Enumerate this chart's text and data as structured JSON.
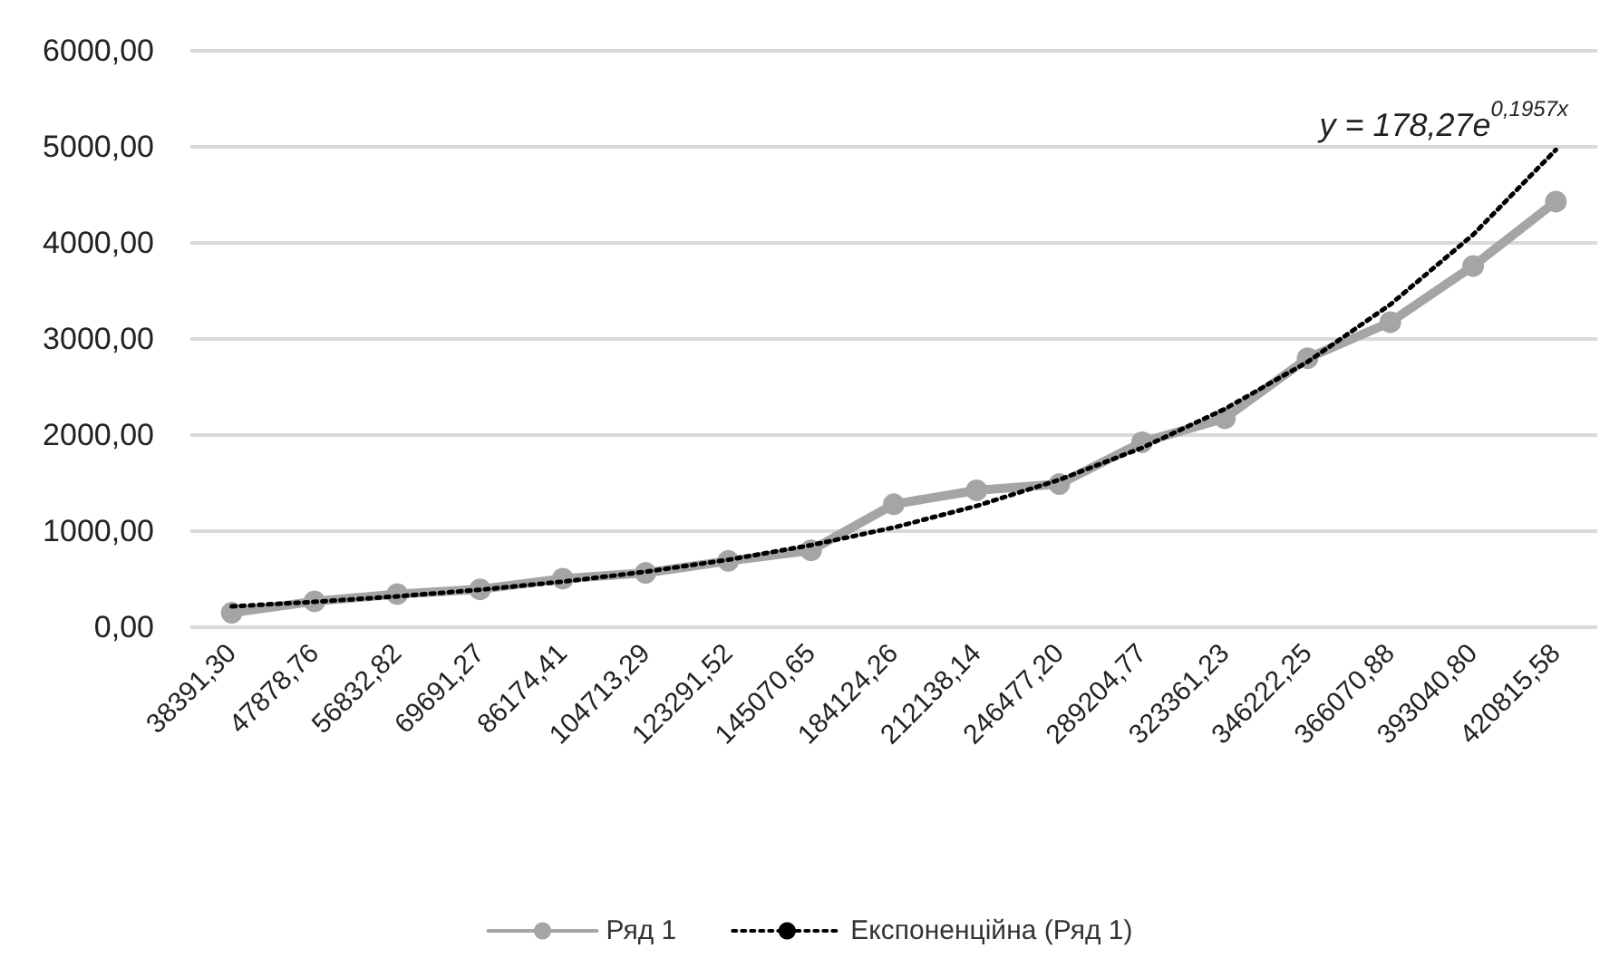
{
  "chart_data": {
    "type": "line",
    "categories": [
      "38391,30",
      "47878,76",
      "56832,82",
      "69691,27",
      "86174,41",
      "104713,29",
      "123291,52",
      "145070,65",
      "184124,26",
      "212138,14",
      "246477,20",
      "289204,77",
      "323361,23",
      "346222,25",
      "366070,88",
      "393040,80",
      "420815,58"
    ],
    "series": [
      {
        "name": "Ряд 1",
        "color": "#a5a5a5",
        "marker": "circle",
        "line_style": "solid",
        "values": [
          150,
          270,
          345,
          395,
          505,
          565,
          690,
          800,
          1280,
          1425,
          1490,
          1925,
          2175,
          2800,
          3175,
          3760,
          4430
        ]
      },
      {
        "name": "Експоненційна (Ряд 1)",
        "color": "#000000",
        "marker": "none",
        "line_style": "dotted",
        "values": [
          217,
          264,
          321,
          390,
          474,
          577,
          702,
          854,
          1038,
          1262,
          1535,
          1867,
          2271,
          2762,
          3359,
          4086,
          4969
        ]
      }
    ],
    "annotations": [
      "y = 178,27e$^{0,1957x}$"
    ],
    "ylim": [
      0,
      6000
    ],
    "yticks": [
      {
        "value": 0,
        "label": "0,00"
      },
      {
        "value": 1000,
        "label": "1000,00"
      },
      {
        "value": 2000,
        "label": "2000,00"
      },
      {
        "value": 3000,
        "label": "3000,00"
      },
      {
        "value": 4000,
        "label": "4000,00"
      },
      {
        "value": 5000,
        "label": "5000,00"
      },
      {
        "value": 6000,
        "label": "6000,00"
      }
    ],
    "grid": "y",
    "legend": "bottom"
  }
}
